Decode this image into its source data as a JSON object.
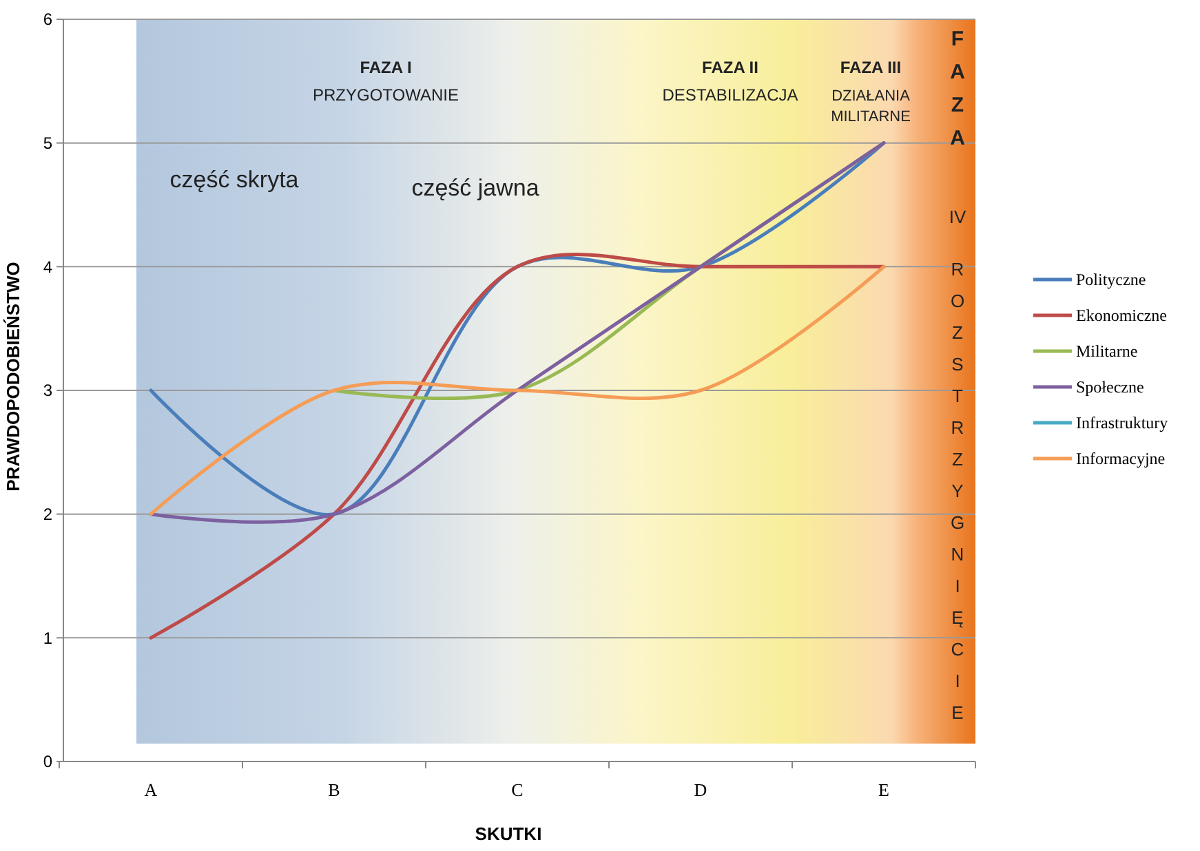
{
  "chart_data": {
    "type": "line",
    "xlabel": "SKUTKI",
    "ylabel": "PRAWDOPODOBIEŃSTWO",
    "categories": [
      "A",
      "B",
      "C",
      "D",
      "E"
    ],
    "ylim": [
      0,
      6
    ],
    "yticks": [
      0,
      1,
      2,
      3,
      4,
      5,
      6
    ],
    "grid": "y",
    "legend": "right",
    "series": [
      {
        "name": "Polityczne",
        "color": "#4a7ebb",
        "values": [
          3,
          2,
          4,
          4,
          5
        ]
      },
      {
        "name": "Ekonomiczne",
        "color": "#be4b48",
        "values": [
          1,
          2,
          4,
          4,
          4
        ]
      },
      {
        "name": "Militarne",
        "color": "#98b954",
        "values": [
          null,
          3,
          3,
          4,
          5
        ]
      },
      {
        "name": "Społeczne",
        "color": "#7d60a0",
        "values": [
          2,
          2,
          3,
          4,
          5
        ]
      },
      {
        "name": "Infrastruktury",
        "color": "#46aac5",
        "values": [
          null,
          null,
          null,
          null,
          null
        ]
      },
      {
        "name": "Informacyjne",
        "color": "#f59d56",
        "values": [
          2,
          3,
          3,
          3,
          4
        ]
      }
    ],
    "annotations": [
      "FAZA I",
      "PRZYGOTOWANIE",
      "FAZA II",
      "DESTABILIZACJA",
      "FAZA III",
      "DZIAŁANIA MILITARNE",
      "FAZA",
      "IV",
      "ROZSTRZYGNIĘCIE",
      "część skryta",
      "część jawna"
    ]
  }
}
